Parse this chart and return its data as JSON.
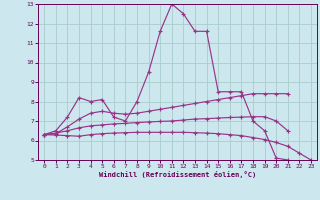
{
  "title": "",
  "xlabel": "Windchill (Refroidissement éolien,°C)",
  "ylabel": "",
  "xlim": [
    -0.5,
    23.5
  ],
  "ylim": [
    5,
    13
  ],
  "xticks": [
    0,
    1,
    2,
    3,
    4,
    5,
    6,
    7,
    8,
    9,
    10,
    11,
    12,
    13,
    14,
    15,
    16,
    17,
    18,
    19,
    20,
    21,
    22,
    23
  ],
  "yticks": [
    5,
    6,
    7,
    8,
    9,
    10,
    11,
    12,
    13
  ],
  "background_color": "#cce8ee",
  "grid_color": "#aacccc",
  "line_color": "#993388",
  "marker_color": "#993388",
  "curves": [
    {
      "x": [
        0,
        1,
        2,
        3,
        4,
        5,
        6,
        7,
        8,
        9,
        10,
        11,
        12,
        13,
        14,
        15,
        16,
        17,
        18,
        19,
        20,
        21
      ],
      "y": [
        6.3,
        6.5,
        7.2,
        8.2,
        8.0,
        8.1,
        7.2,
        7.0,
        8.0,
        9.5,
        11.6,
        13.0,
        12.5,
        11.6,
        11.6,
        8.5,
        8.5,
        8.5,
        7.0,
        6.5,
        5.1,
        5.0
      ]
    },
    {
      "x": [
        0,
        1,
        2,
        3,
        4,
        5,
        6,
        7,
        8,
        9,
        10,
        11,
        12,
        13,
        14,
        15,
        16,
        17,
        18,
        19,
        20,
        21
      ],
      "y": [
        6.3,
        6.35,
        6.7,
        7.1,
        7.4,
        7.5,
        7.4,
        7.35,
        7.4,
        7.5,
        7.6,
        7.7,
        7.8,
        7.9,
        8.0,
        8.1,
        8.2,
        8.3,
        8.4,
        8.4,
        8.4,
        8.4
      ]
    },
    {
      "x": [
        0,
        1,
        2,
        3,
        4,
        5,
        6,
        7,
        8,
        9,
        10,
        11,
        12,
        13,
        14,
        15,
        16,
        17,
        18,
        19,
        20,
        21
      ],
      "y": [
        6.3,
        6.38,
        6.5,
        6.65,
        6.75,
        6.8,
        6.85,
        6.88,
        6.92,
        6.95,
        6.98,
        7.0,
        7.05,
        7.1,
        7.12,
        7.15,
        7.18,
        7.2,
        7.22,
        7.22,
        7.0,
        6.5
      ]
    },
    {
      "x": [
        0,
        1,
        2,
        3,
        4,
        5,
        6,
        7,
        8,
        9,
        10,
        11,
        12,
        13,
        14,
        15,
        16,
        17,
        18,
        19,
        20,
        21,
        22,
        23
      ],
      "y": [
        6.3,
        6.28,
        6.25,
        6.22,
        6.3,
        6.35,
        6.38,
        6.4,
        6.42,
        6.42,
        6.42,
        6.42,
        6.42,
        6.4,
        6.38,
        6.35,
        6.3,
        6.25,
        6.15,
        6.05,
        5.9,
        5.7,
        5.35,
        5.0
      ]
    }
  ]
}
